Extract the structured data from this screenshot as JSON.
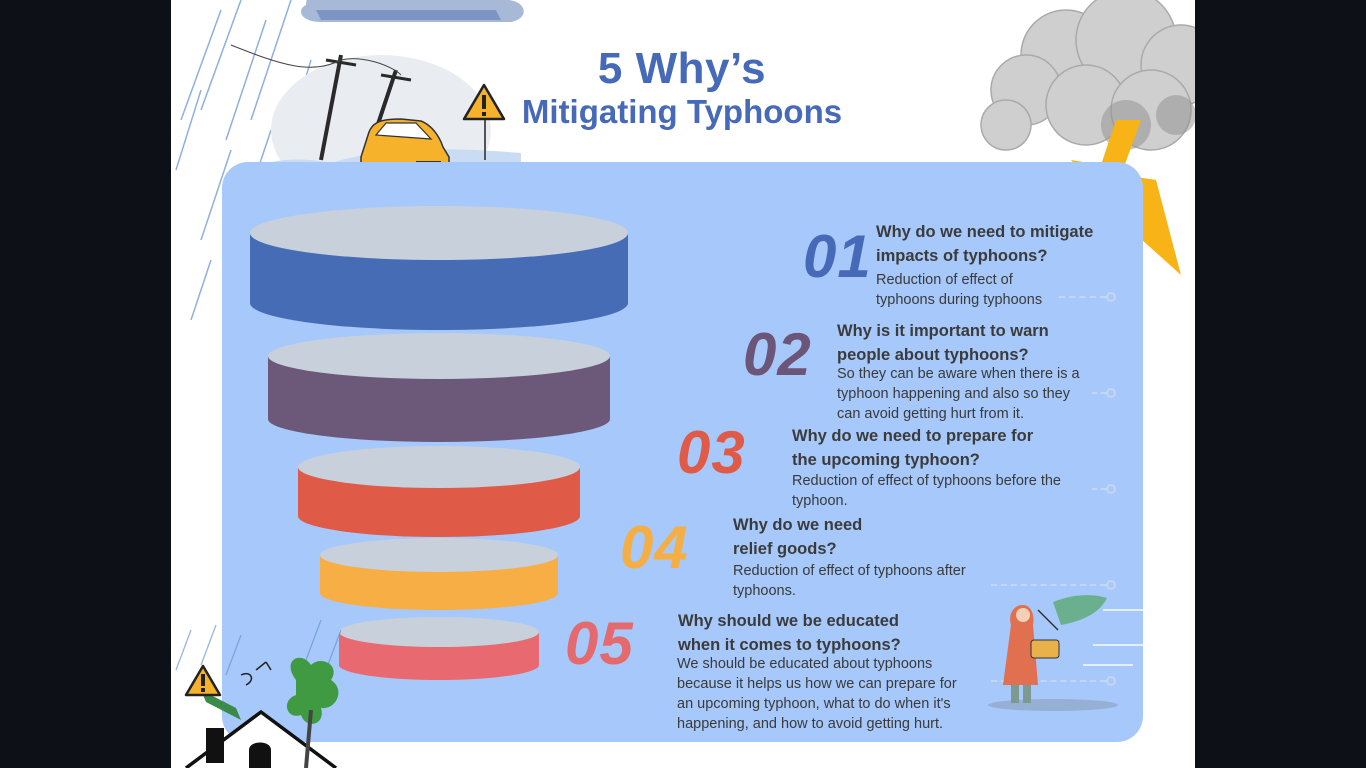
{
  "title": {
    "line1": "5 Why’s",
    "line2": "Mitigating Typhoons",
    "color": "#4669b8"
  },
  "items": [
    {
      "number": "01",
      "color": "#466ab7",
      "question_line1": "Why do we need to mitigate",
      "question_line2": "impacts of typhoons?",
      "answer_lines": [
        "Reduction of effect of",
        "typhoons during typhoons"
      ]
    },
    {
      "number": "02",
      "color": "#6b5578",
      "question_line1": "Why is it important to warn",
      "question_line2": "people about typhoons?",
      "answer_lines": [
        "So they can be aware when there is a",
        "typhoon happening and also so they",
        "can avoid getting hurt from it."
      ]
    },
    {
      "number": "03",
      "color": "#e05a48",
      "question_line1": "Why do we need to prepare for",
      "question_line2": "the upcoming typhoon?",
      "answer_lines": [
        "Reduction of effect of typhoons before the",
        "typhoon."
      ]
    },
    {
      "number": "04",
      "color": "#f5ae44",
      "question_line1": "Why do we need",
      "question_line2": "relief goods?",
      "answer_lines": [
        "Reduction of effect of typhoons after",
        "typhoons."
      ]
    },
    {
      "number": "05",
      "color": "#e46a6e",
      "question_line1": "Why should we be educated",
      "question_line2": "when it comes to typhoons?",
      "answer_lines": [
        "We should be educated about typhoons",
        "because it helps us how we can prepare for",
        "an upcoming typhoon, what to do when it's",
        "happening, and how to avoid getting hurt."
      ]
    }
  ],
  "funnel_colors": [
    "#466cb6",
    "#6c5878",
    "#e05a48",
    "#f6ae45",
    "#e86a70"
  ],
  "icons": [
    "storm-cloud-icon",
    "lightning-bolt-icon",
    "warning-sign-icon",
    "flooded-car-icon",
    "house-icon",
    "tree-icon",
    "person-in-wind-icon"
  ]
}
